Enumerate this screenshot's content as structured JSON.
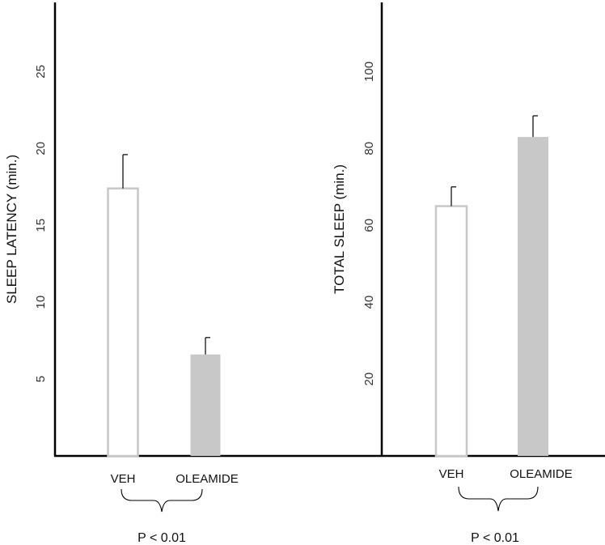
{
  "chart_data": [
    {
      "type": "bar",
      "categories": [
        "VEH",
        "OLEAMIDE"
      ],
      "values": [
        17.4,
        6.6
      ],
      "errors": [
        2.2,
        1.1
      ],
      "ylabel": "SLEEP  LATENCY  (min.)",
      "yticks": [
        5,
        10,
        15,
        20,
        25
      ],
      "ylim": [
        0,
        29.5
      ],
      "bar_styles": [
        "outline",
        "filled"
      ],
      "annotation": "P < 0.01"
    },
    {
      "type": "bar",
      "categories": [
        "VEH",
        "OLEAMIDE"
      ],
      "values": [
        65,
        83
      ],
      "errors": [
        5,
        5.5
      ],
      "ylabel": "TOTAL  SLEEP  (min.)",
      "yticks": [
        20,
        40,
        60,
        80,
        100
      ],
      "ylim": [
        0,
        118
      ],
      "bar_styles": [
        "outline",
        "filled"
      ],
      "annotation": "P < 0.01"
    }
  ],
  "colors": {
    "bar_fill": "#c8c8c8",
    "bar_outline": "#c8c8c8",
    "axis": "#000000"
  }
}
